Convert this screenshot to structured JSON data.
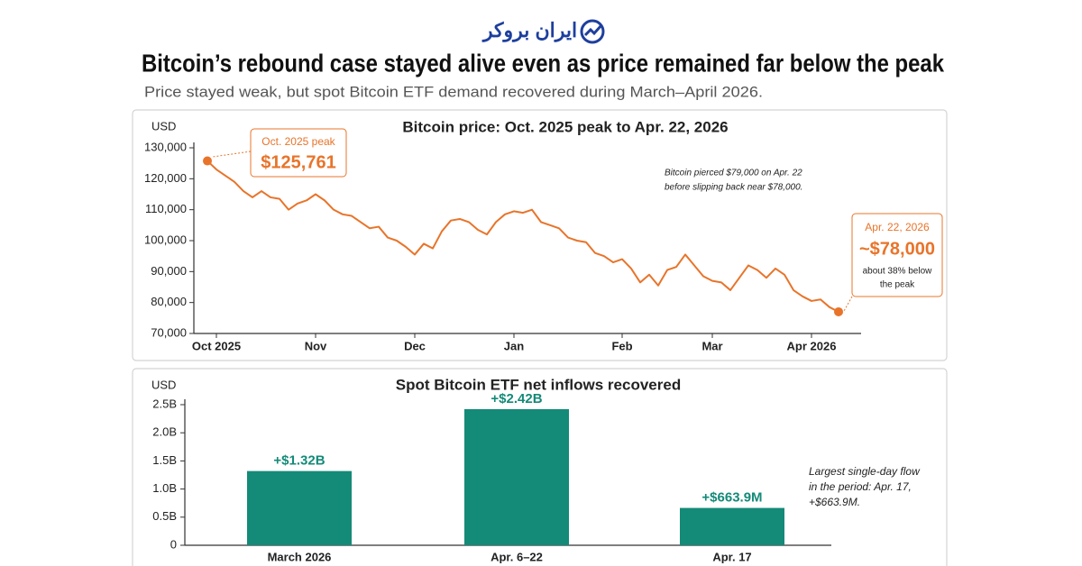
{
  "header": {
    "logo": "ایران بروکر",
    "title": "Bitcoin’s rebound case stayed alive even as price remained far below the peak",
    "subtitle": "Price stayed weak, but spot Bitcoin ETF demand recovered during March–April 2026."
  },
  "chart_data": [
    {
      "type": "line",
      "title": "Bitcoin price: Oct. 2025 peak to Apr. 22, 2026",
      "y_label": "USD",
      "categories": [
        null,
        "Oct 2025",
        null,
        null,
        null,
        null,
        null,
        null,
        null,
        null,
        null,
        null,
        "Nov",
        null,
        null,
        null,
        null,
        null,
        null,
        null,
        null,
        null,
        null,
        "Dec",
        null,
        null,
        null,
        null,
        null,
        null,
        null,
        null,
        null,
        null,
        "Jan",
        null,
        null,
        null,
        null,
        null,
        null,
        null,
        null,
        null,
        null,
        null,
        "Feb",
        null,
        null,
        null,
        null,
        null,
        null,
        null,
        null,
        null,
        "Mar",
        null,
        null,
        null,
        null,
        null,
        null,
        null,
        null,
        null,
        null,
        "Apr 2026",
        null,
        null,
        null
      ],
      "values": [
        125761,
        123000,
        121000,
        119000,
        116000,
        114000,
        116000,
        114000,
        113500,
        110000,
        112000,
        113000,
        115000,
        113000,
        110000,
        108500,
        108000,
        106000,
        104000,
        104500,
        101000,
        100000,
        98000,
        95500,
        99000,
        97500,
        103000,
        106500,
        107000,
        106000,
        103500,
        102000,
        106000,
        108500,
        109500,
        109000,
        110000,
        106000,
        105000,
        104000,
        101000,
        100000,
        99500,
        96000,
        95000,
        93000,
        94000,
        91000,
        86500,
        89000,
        85500,
        90500,
        91500,
        95500,
        92000,
        88500,
        87000,
        86500,
        84000,
        88000,
        92000,
        90500,
        88000,
        91000,
        89000,
        84000,
        82000,
        80500,
        81000,
        78500,
        77000
      ],
      "color": "#e8742a",
      "ylim": [
        70000,
        130000
      ],
      "yticks": [
        {
          "value": 70000,
          "label": "70,000"
        },
        {
          "value": 80000,
          "label": "80,000"
        },
        {
          "value": 90000,
          "label": "90,000"
        },
        {
          "value": 100000,
          "label": "100,000"
        },
        {
          "value": 110000,
          "label": "110,000"
        },
        {
          "value": 120000,
          "label": "120,000"
        },
        {
          "value": 130000,
          "label": "130,000"
        }
      ],
      "annotations": {
        "peak": [
          "Oct. 2025 peak",
          "$125,761"
        ],
        "note": [
          "Bitcoin pierced $79,000 on Apr. 22",
          "before slipping back near $78,000."
        ],
        "end": [
          "Apr. 22, 2026",
          "~$78,000",
          "about 38% below",
          "the peak"
        ]
      }
    },
    {
      "type": "bar",
      "title": "Spot Bitcoin ETF net inflows recovered",
      "y_label": "USD",
      "categories": [
        "March 2026",
        "Apr. 6–22",
        "Apr. 17"
      ],
      "values": [
        1.32,
        2.42,
        0.6639
      ],
      "value_labels": [
        "+$1.32B",
        "+$2.42B",
        "+$663.9M"
      ],
      "color": "#148a78",
      "ylim": [
        0,
        2.5
      ],
      "yticks": [
        0,
        {
          "value": 0.5,
          "label": "0.5B"
        },
        {
          "value": 1.0,
          "label": "1.0B"
        },
        {
          "value": 1.5,
          "label": "1.5B"
        },
        {
          "value": 2.0,
          "label": "2.0B"
        },
        {
          "value": 2.5,
          "label": "2.5B"
        }
      ],
      "note": [
        "Largest single-day flow",
        "in the period: Apr. 17,",
        "+$663.9M."
      ]
    }
  ]
}
